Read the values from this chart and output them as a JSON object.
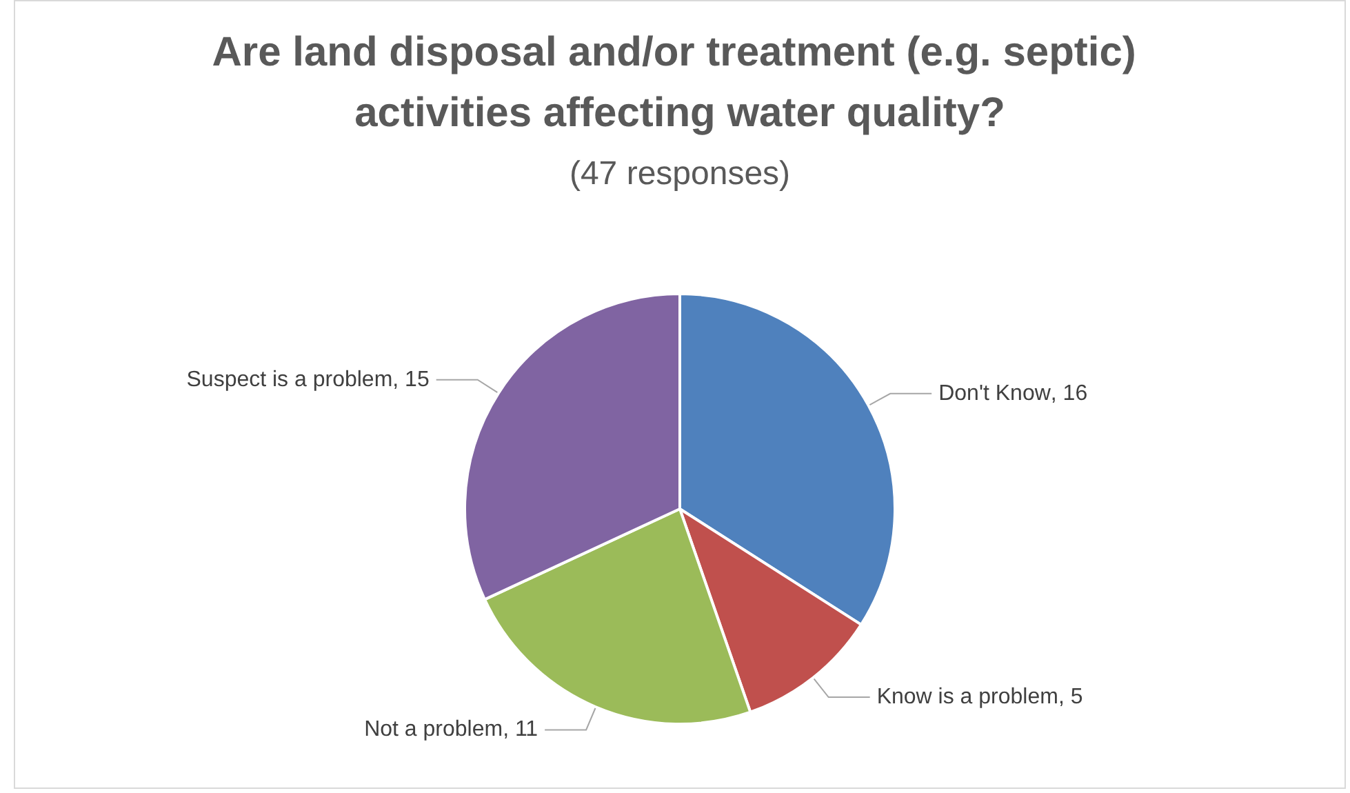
{
  "chart_data": {
    "type": "pie",
    "title": "Are land disposal and/or treatment (e.g. septic) activities affecting water quality?",
    "subtitle": "(47 responses)",
    "categories": [
      "Don't Know",
      "Know is a problem",
      "Not a problem",
      "Suspect is a problem"
    ],
    "values": [
      16,
      5,
      11,
      15
    ],
    "colors": [
      "#4f81bd",
      "#c0504d",
      "#9bbb59",
      "#8064a2"
    ],
    "value_labels": [
      ", 16",
      ", 5",
      ", 11",
      ", 15"
    ],
    "legend": false
  }
}
